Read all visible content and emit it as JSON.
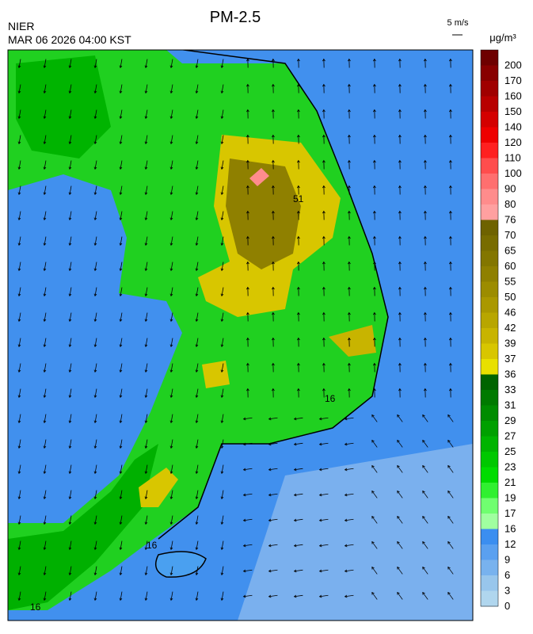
{
  "header": {
    "title": "PM-2.5",
    "agency": "NIER",
    "timestamp": "MAR 06 2026 04:00 KST",
    "wind_scale": "5 m/s",
    "unit": "μg/m³"
  },
  "colorbar": {
    "labels": [
      200,
      170,
      160,
      150,
      140,
      120,
      110,
      100,
      90,
      80,
      76,
      70,
      65,
      60,
      55,
      50,
      46,
      42,
      39,
      37,
      36,
      33,
      31,
      29,
      27,
      25,
      23,
      21,
      19,
      17,
      16,
      12,
      9,
      6,
      3,
      0
    ],
    "colors": [
      "#6e0000",
      "#880000",
      "#a00000",
      "#b80000",
      "#d40000",
      "#ee0000",
      "#ff2020",
      "#ff4d4d",
      "#ff6f6f",
      "#ff8c8c",
      "#ffa0a0",
      "#6e6200",
      "#786c00",
      "#837600",
      "#8f8000",
      "#9c8c00",
      "#aa9800",
      "#b8a600",
      "#c8b400",
      "#d8c600",
      "#e8e000",
      "#006400",
      "#007a00",
      "#008c00",
      "#00a000",
      "#00b400",
      "#00c800",
      "#00dc00",
      "#30f030",
      "#70ff70",
      "#a0ffa0",
      "#3b8ef0",
      "#5aa0f0",
      "#78b2ee",
      "#98c6ec",
      "#b0d6ee"
    ]
  },
  "contour_labels": [
    "16",
    "16",
    "16",
    "51"
  ]
}
